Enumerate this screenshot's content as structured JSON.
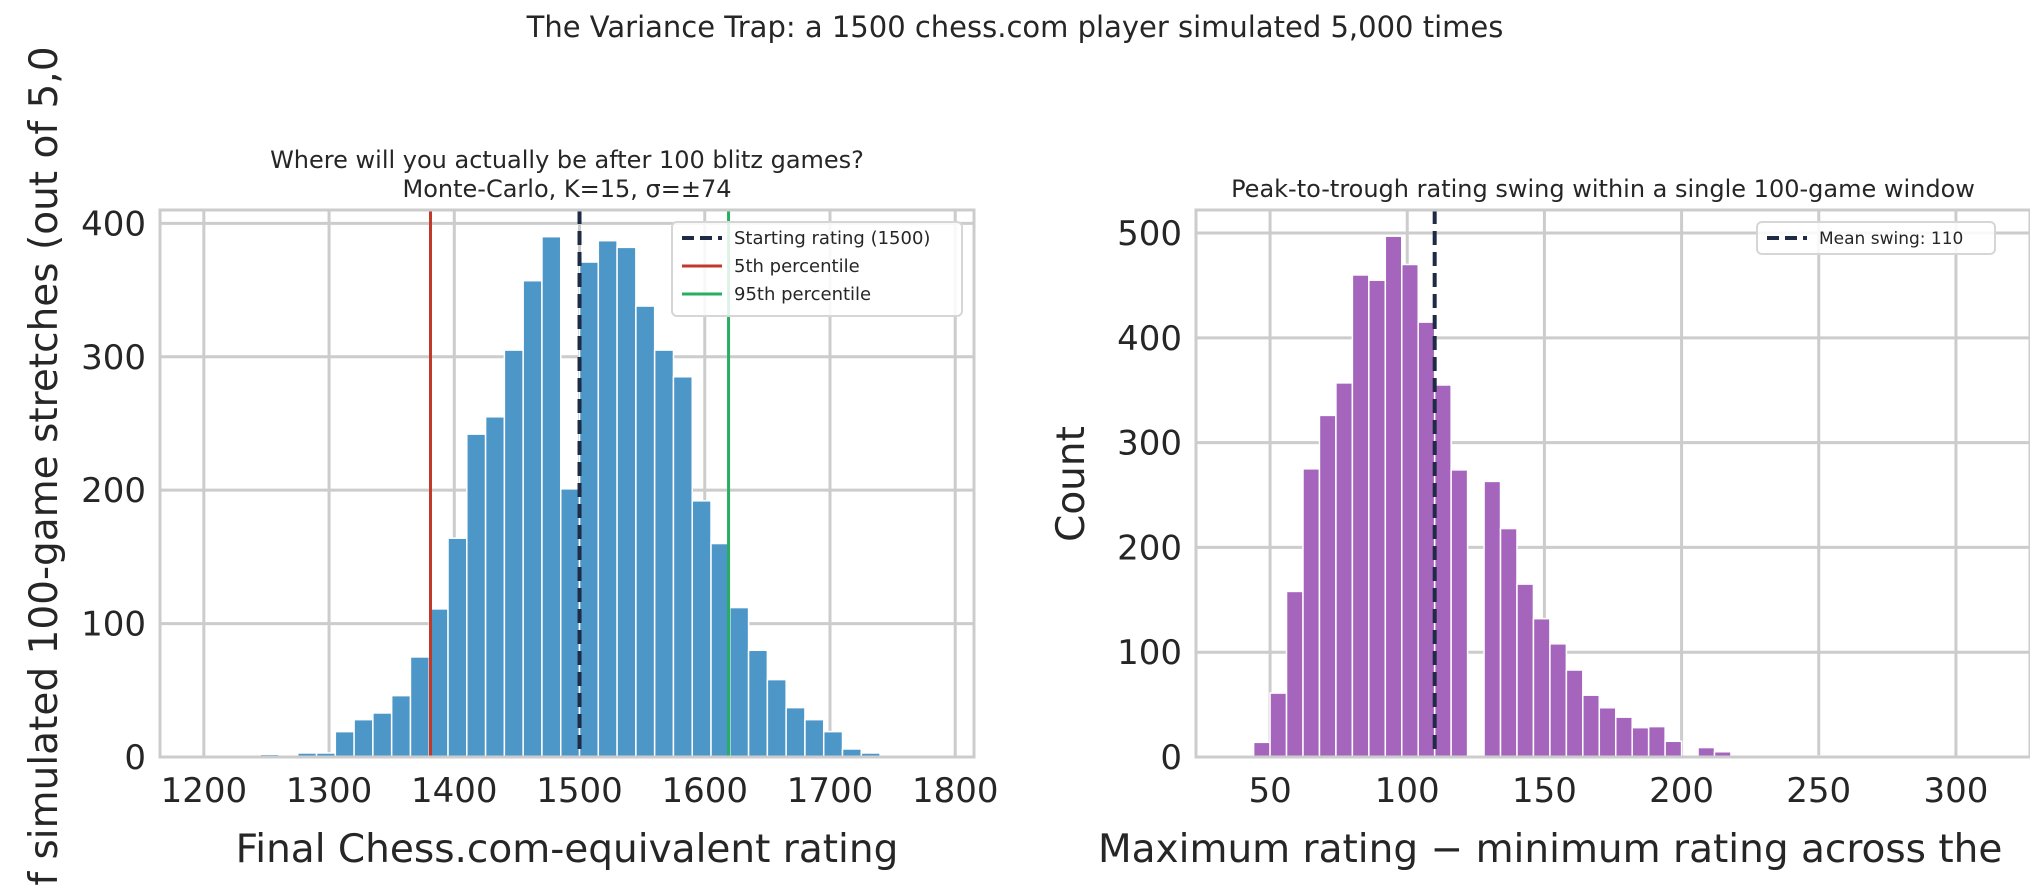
{
  "figure": {
    "suptitle": "The Variance Trap: a 1500 chess.com player simulated 5,000 times"
  },
  "chart_data": [
    {
      "type": "bar",
      "title_lines": [
        "Where will you actually be after 100 blitz games?",
        "Monte-Carlo, K=15, σ=±74"
      ],
      "xlabel": "Final Chess.com-equivalent rating",
      "ylabel": "of simulated 100-game stretches (out of 5,0",
      "xlim": [
        1165,
        1815
      ],
      "ylim": [
        0,
        410
      ],
      "xticks": [
        1200,
        1300,
        1400,
        1500,
        1600,
        1700,
        1800
      ],
      "yticks": [
        0,
        100,
        200,
        300,
        400
      ],
      "grid": true,
      "bin_width": 15,
      "bar_color": "#4c96c8",
      "bins": [
        [
          1245,
          2
        ],
        [
          1275,
          3
        ],
        [
          1290,
          3
        ],
        [
          1305,
          19
        ],
        [
          1320,
          28
        ],
        [
          1335,
          33
        ],
        [
          1350,
          46
        ],
        [
          1365,
          75
        ],
        [
          1380,
          111
        ],
        [
          1395,
          164
        ],
        [
          1410,
          242
        ],
        [
          1425,
          255
        ],
        [
          1440,
          305
        ],
        [
          1455,
          357
        ],
        [
          1470,
          390
        ],
        [
          1485,
          201
        ],
        [
          1500,
          371
        ],
        [
          1515,
          387
        ],
        [
          1530,
          382
        ],
        [
          1545,
          338
        ],
        [
          1560,
          305
        ],
        [
          1575,
          285
        ],
        [
          1590,
          192
        ],
        [
          1605,
          160
        ],
        [
          1620,
          112
        ],
        [
          1635,
          80
        ],
        [
          1650,
          58
        ],
        [
          1665,
          37
        ],
        [
          1680,
          28
        ],
        [
          1695,
          19
        ],
        [
          1710,
          6
        ],
        [
          1725,
          3
        ]
      ],
      "lines": [
        {
          "name": "Starting rating (1500)",
          "x": 1500,
          "color": "#1f2a44",
          "dashed": true
        },
        {
          "name": "5th percentile",
          "x": 1381,
          "color": "#c0392b",
          "dashed": false
        },
        {
          "name": "95th percentile",
          "x": 1619,
          "color": "#27ae60",
          "dashed": false
        }
      ],
      "legend": "top-right"
    },
    {
      "type": "bar",
      "title_lines": [
        "Peak-to-trough rating swing within a single 100-game window"
      ],
      "xlabel": "Maximum rating − minimum rating across the",
      "ylabel": "Count",
      "xlim": [
        23,
        327
      ],
      "ylim": [
        0,
        522
      ],
      "xticks": [
        50,
        100,
        150,
        200,
        250,
        300
      ],
      "yticks": [
        0,
        100,
        200,
        300,
        400,
        500
      ],
      "grid": true,
      "bin_width": 6,
      "bar_color": "#a565bd",
      "bins": [
        [
          44,
          14
        ],
        [
          50,
          61
        ],
        [
          56,
          158
        ],
        [
          62,
          275
        ],
        [
          68,
          326
        ],
        [
          74,
          357
        ],
        [
          80,
          460
        ],
        [
          86,
          455
        ],
        [
          92,
          497
        ],
        [
          98,
          470
        ],
        [
          104,
          415
        ],
        [
          110,
          355
        ],
        [
          116,
          274
        ],
        [
          128,
          263
        ],
        [
          134,
          218
        ],
        [
          140,
          165
        ],
        [
          146,
          132
        ],
        [
          152,
          108
        ],
        [
          158,
          83
        ],
        [
          164,
          59
        ],
        [
          170,
          47
        ],
        [
          176,
          38
        ],
        [
          182,
          28
        ],
        [
          188,
          29
        ],
        [
          194,
          15
        ],
        [
          206,
          9
        ],
        [
          212,
          5
        ],
        [
          224,
          2
        ],
        [
          248,
          1
        ]
      ],
      "lines": [
        {
          "name": "Mean swing: 110",
          "x": 110,
          "color": "#1f2a44",
          "dashed": true
        }
      ],
      "legend": "top-right"
    }
  ]
}
